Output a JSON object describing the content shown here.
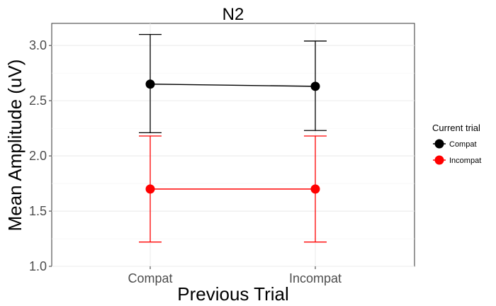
{
  "chart_data": {
    "type": "line",
    "title": "N2",
    "xlabel": "Previous Trial",
    "ylabel": "Mean Amplitude (uV)",
    "categories": [
      "Compat",
      "Incompat"
    ],
    "ylim": [
      1.0,
      3.2
    ],
    "yticks": [
      1.0,
      1.5,
      2.0,
      2.5,
      3.0
    ],
    "ytick_labels": [
      "1.0",
      "1.5",
      "2.0",
      "2.5",
      "3.0"
    ],
    "grid": true,
    "legend": {
      "title": "Current trial",
      "position": "right"
    },
    "series": [
      {
        "name": "Compat",
        "color": "#000000",
        "values": [
          2.65,
          2.63
        ],
        "error_low": [
          2.21,
          2.23
        ],
        "error_high": [
          3.1,
          3.04
        ]
      },
      {
        "name": "Incompat",
        "color": "#ff0000",
        "values": [
          1.7,
          1.7
        ],
        "error_low": [
          1.22,
          1.22
        ],
        "error_high": [
          2.18,
          2.18
        ]
      }
    ]
  }
}
